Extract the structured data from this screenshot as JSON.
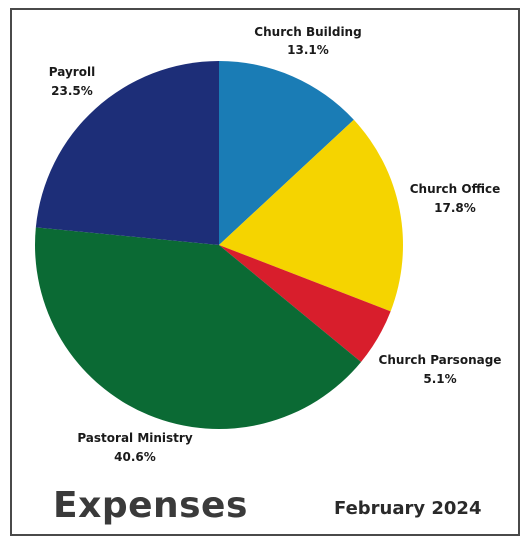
{
  "chart_data": {
    "type": "pie",
    "title": "Expenses",
    "subtitle": "February 2024",
    "slices": [
      {
        "label": "Church Building",
        "value": 13.1,
        "value_label": "13.1%",
        "color": "#1a7cb5"
      },
      {
        "label": "Church Office",
        "value": 17.8,
        "value_label": "17.8%",
        "color": "#f5d400"
      },
      {
        "label": "Church Parsonage",
        "value": 5.1,
        "value_label": "5.1%",
        "color": "#d81e2c"
      },
      {
        "label": "Pastoral Ministry",
        "value": 40.6,
        "value_label": "40.6%",
        "color": "#0b6a34"
      },
      {
        "label": "Payroll",
        "value": 23.5,
        "value_label": "23.5%",
        "color": "#1d2e78"
      }
    ],
    "start_angle": "top",
    "direction": "clockwise"
  }
}
